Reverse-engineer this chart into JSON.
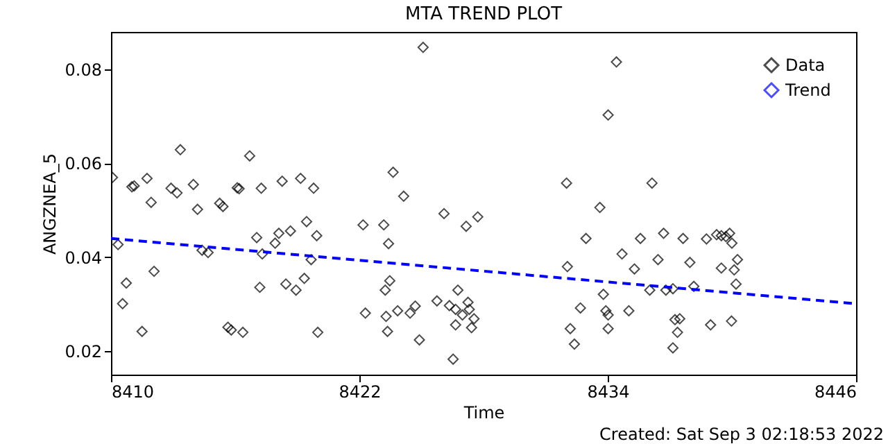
{
  "chart_data": {
    "type": "scatter",
    "title": "MTA TREND PLOT",
    "xlabel": "Time",
    "ylabel": "ANGZNEA_5",
    "xlim": [
      8410,
      8446
    ],
    "xticks": [
      8410,
      8422,
      8434,
      8446
    ],
    "ylim": [
      0.015,
      0.088
    ],
    "yticks": [
      0.02,
      0.04,
      0.06,
      0.08
    ],
    "grid": false,
    "legend": "top right",
    "annotations": [
      "Created: Sat Sep  3 02:18:53 2022"
    ],
    "series": [
      {
        "name": "Data",
        "color": "#000000",
        "marker": "diamond",
        "x": [
          8410.07,
          8413.35,
          8416.7,
          8411.01,
          8411.12,
          8411.74,
          8412.9,
          8413.19,
          8413.98,
          8416.1,
          8416.19,
          8417.26,
          8418.27,
          8419.16,
          8419.79,
          8411.94,
          8414.18,
          8415.25,
          8415.41,
          8422.18,
          8419.45,
          8410.34,
          8417.04,
          8418.11,
          8418.67,
          8419.94,
          8417.93,
          8414.4,
          8414.69,
          8417.31,
          8419.67,
          8410.74,
          8412.08,
          8417.19,
          8418.45,
          8418.94,
          8419.34,
          8410.56,
          8411.5,
          8415.65,
          8415.81,
          8416.37,
          8419.99,
          8422.29,
          8425.08,
          8423.63,
          8424.14,
          8426.09,
          8427.16,
          8427.72,
          8423.18,
          8423.41,
          8432.01,
          8433.62,
          8432.95,
          8432.05,
          8434.02,
          8423.47,
          8423.25,
          8423.29,
          8423.36,
          8423.85,
          8424.45,
          8424.7,
          8424.9,
          8425.75,
          8426.76,
          8426.35,
          8426.65,
          8426.98,
          8427.25,
          8427.31,
          8426.65,
          8427.42,
          8427.54,
          8426.53,
          8432.68,
          8432.19,
          8432.39,
          8433.79,
          8433.91,
          8434.02,
          8434.42,
          8436.14,
          8436.7,
          8435.58,
          8437.64,
          8438.77,
          8439.26,
          8439.49,
          8439.71,
          8439.89,
          8440.0,
          8434.69,
          8436.43,
          8437.97,
          8440.27,
          8435.29,
          8439.49,
          8440.11,
          8440.2,
          8436.03,
          8436.81,
          8437.15,
          8438.16,
          8434.02,
          8435.02,
          8437.25,
          8437.48,
          8437.37,
          8438.97,
          8439.98,
          8437.15
        ],
        "values": [
          0.057,
          0.0629,
          0.0616,
          0.055,
          0.0552,
          0.0568,
          0.0547,
          0.0537,
          0.0555,
          0.0548,
          0.0546,
          0.0547,
          0.0562,
          0.0568,
          0.0547,
          0.0517,
          0.0502,
          0.0515,
          0.0508,
          0.0469,
          0.0476,
          0.0427,
          0.0442,
          0.0451,
          0.0456,
          0.0446,
          0.043,
          0.0415,
          0.041,
          0.0407,
          0.0395,
          0.0345,
          0.037,
          0.0336,
          0.0343,
          0.033,
          0.0355,
          0.0301,
          0.0242,
          0.0251,
          0.0245,
          0.024,
          0.024,
          0.0281,
          0.0847,
          0.0581,
          0.053,
          0.0493,
          0.0466,
          0.0486,
          0.0469,
          0.0429,
          0.0558,
          0.0506,
          0.044,
          0.038,
          0.0703,
          0.035,
          0.033,
          0.0274,
          0.0242,
          0.0286,
          0.0281,
          0.0296,
          0.0224,
          0.0307,
          0.033,
          0.0297,
          0.0289,
          0.0277,
          0.0304,
          0.0289,
          0.0256,
          0.025,
          0.0269,
          0.0183,
          0.0292,
          0.0248,
          0.0215,
          0.0321,
          0.0286,
          0.0248,
          0.0816,
          0.0558,
          0.0451,
          0.044,
          0.044,
          0.0439,
          0.0448,
          0.0446,
          0.0444,
          0.0451,
          0.043,
          0.0407,
          0.0395,
          0.0389,
          0.0395,
          0.0375,
          0.0377,
          0.0373,
          0.0343,
          0.033,
          0.033,
          0.0333,
          0.0338,
          0.0277,
          0.0286,
          0.0267,
          0.0269,
          0.024,
          0.0256,
          0.0264,
          0.0207
        ]
      },
      {
        "name": "Trend",
        "type": "line",
        "color": "#0000ff",
        "line_style": "dashed",
        "marker": "none",
        "x": [
          8410,
          8446
        ],
        "values": [
          0.044,
          0.0301
        ]
      }
    ]
  }
}
